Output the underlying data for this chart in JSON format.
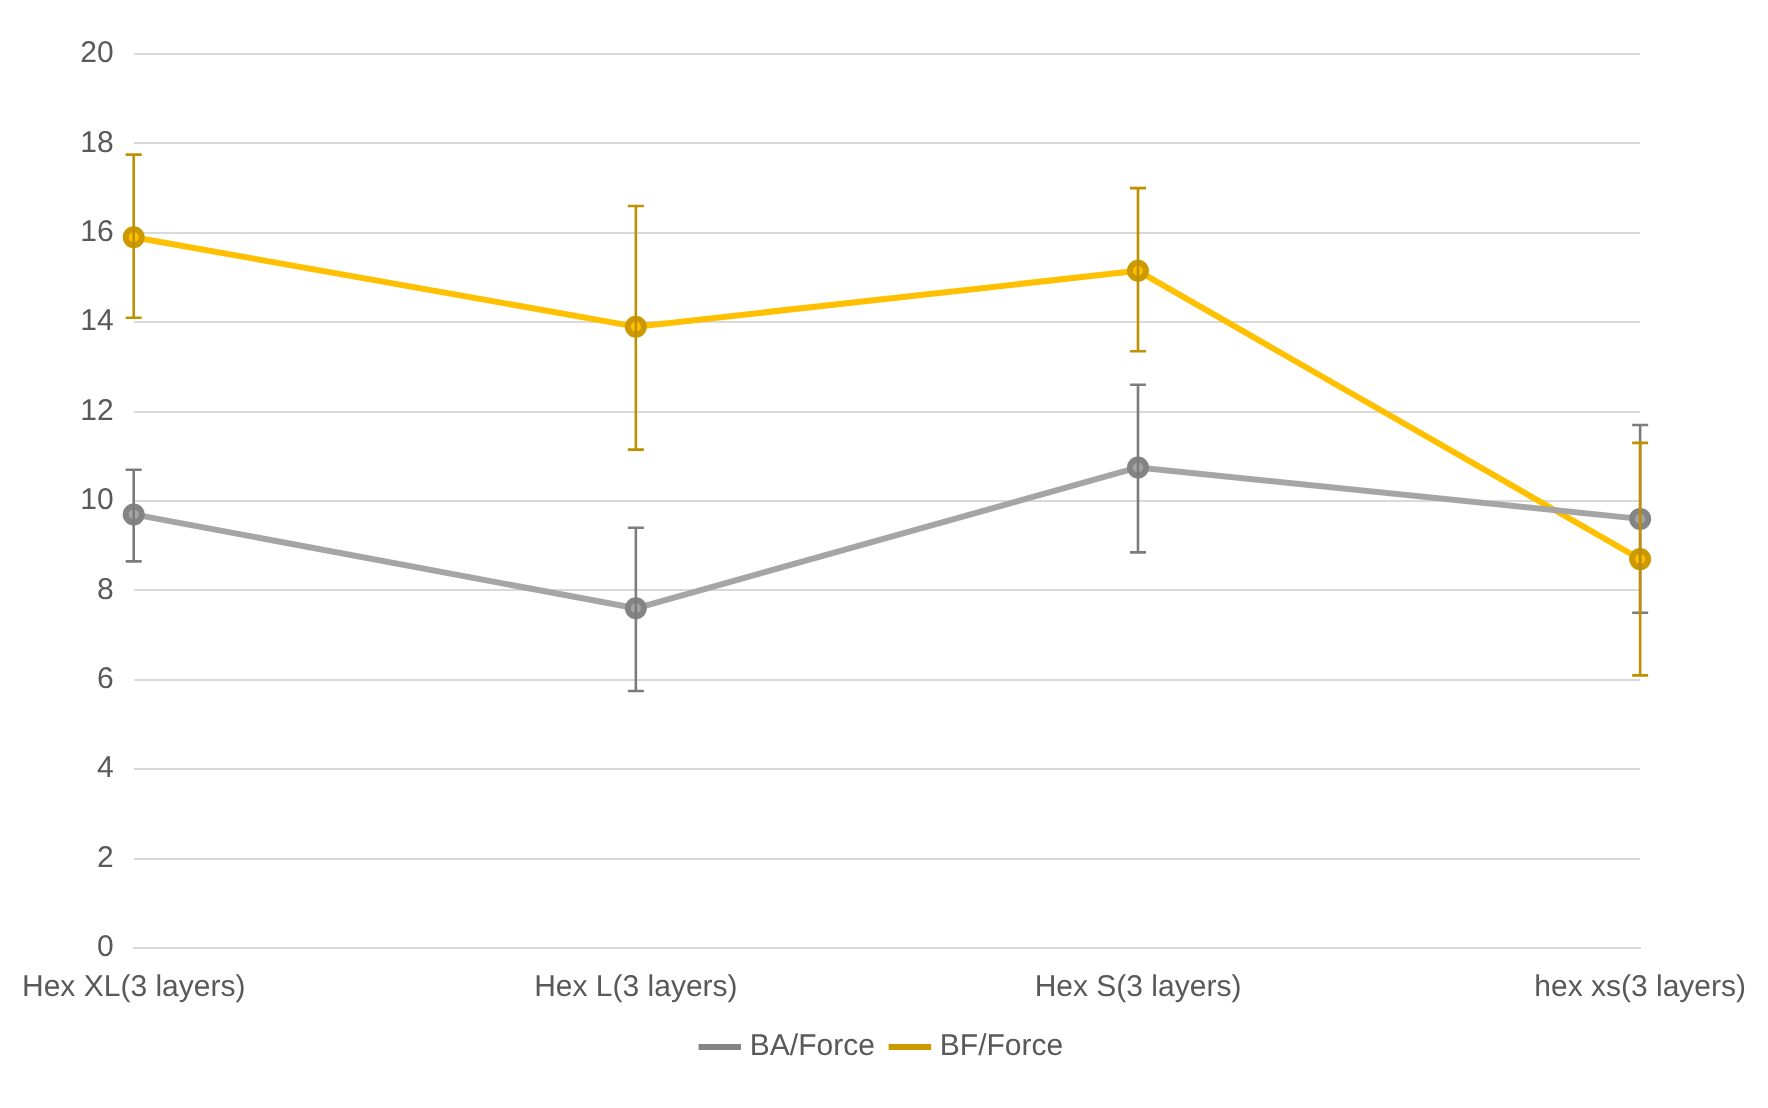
{
  "chart_data": {
    "type": "line",
    "categories": [
      "Hex XL(3 layers)",
      "Hex L(3 layers)",
      "Hex S(3 layers)",
      "hex xs(3 layers)"
    ],
    "series": [
      {
        "name": "BA/Force",
        "color": "#a5a5a5",
        "values": [
          9.7,
          7.6,
          10.75,
          9.6
        ],
        "errors": [
          [
            8.65,
            10.7
          ],
          [
            5.75,
            9.4
          ],
          [
            8.85,
            12.6
          ],
          [
            7.5,
            11.7
          ]
        ]
      },
      {
        "name": "BF/Force",
        "color": "#ffc000",
        "values": [
          15.9,
          13.9,
          15.15,
          8.7
        ],
        "errors": [
          [
            14.1,
            17.75
          ],
          [
            11.15,
            16.6
          ],
          [
            13.35,
            17.0
          ],
          [
            6.1,
            11.3
          ]
        ]
      }
    ],
    "ylim": [
      0,
      20
    ],
    "yticks": [
      0,
      2,
      4,
      6,
      8,
      10,
      12,
      14,
      16,
      18,
      20
    ],
    "grid": "y",
    "legend": "bottom",
    "marker": "circle",
    "line_style": "solid"
  }
}
